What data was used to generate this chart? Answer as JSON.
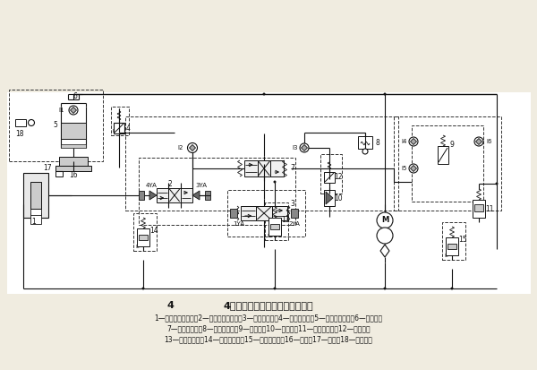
{
  "title": "4柱万能液压机的液压系统原理图",
  "caption_line1": "1—下缸（顶出缸）；2—下缸电液换向阀；3—主缸先导阀；4—主缸安全阀；5—上缸（主缸）；6—充液箱；",
  "caption_line2": "7—主缸换向阀；8—压力继电器；9—释压阀；10—顺序阀；11—泵站溢流阀；12—减压阀；",
  "caption_line3": "13—下缸溢流阀；14—下缸安全阀；15—远程调压阀；16—滑块；17—挡块；18—行程开关",
  "bg_color": "#f0ece0",
  "schematic_bg": "#ffffff",
  "line_color": "#111111",
  "dashed_color": "#333333",
  "text_color": "#111111",
  "gray_fill": "#cccccc",
  "dark_fill": "#666666"
}
